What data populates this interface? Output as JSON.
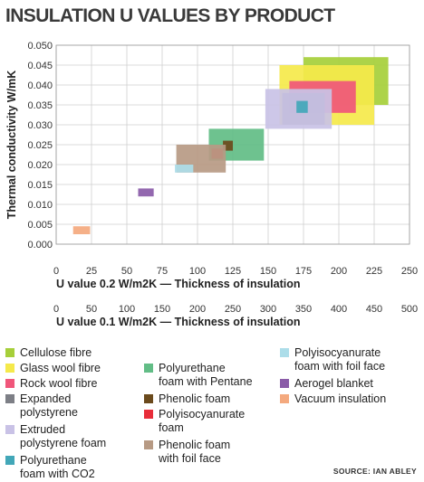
{
  "chart_data": {
    "type": "scatter",
    "title": "INSULATION U VALUES BY PRODUCT",
    "ylabel": "Thermal conductivity W/mK",
    "xlabel": "U value 0.2 W/m2K — Thickness of insulation",
    "xlabel2": "U value 0.1 W/m2K — Thickness of insulation",
    "xlim": [
      0,
      250
    ],
    "ylim": [
      0,
      0.05
    ],
    "x2lim": [
      0,
      500
    ],
    "xticks": [
      "0",
      "25",
      "50",
      "75",
      "100",
      "125",
      "150",
      "175",
      "200",
      "225",
      "250"
    ],
    "x2ticks": [
      "0",
      "50",
      "100",
      "150",
      "200",
      "250",
      "300",
      "350",
      "400",
      "450",
      "500"
    ],
    "yticks": [
      "0.000",
      "0.005",
      "0.010",
      "0.015",
      "0.020",
      "0.025",
      "0.030",
      "0.035",
      "0.040",
      "0.045",
      "0.050"
    ],
    "grid": true,
    "legend_position": "bottom",
    "series": [
      {
        "name": "Cellulose fibre",
        "color": "#a6cf3a",
        "x": [
          175,
          235
        ],
        "y": [
          0.035,
          0.047
        ]
      },
      {
        "name": "Glass wool fibre",
        "color": "#f5e94b",
        "x": [
          158,
          225
        ],
        "y": [
          0.03,
          0.045
        ]
      },
      {
        "name": "Rock wool fibre",
        "color": "#f0567a",
        "x": [
          165,
          212
        ],
        "y": [
          0.033,
          0.041
        ]
      },
      {
        "name": "Expanded polystyrene",
        "color": "#7d7f86",
        "x": [
          160,
          190
        ],
        "y": [
          0.03,
          0.038
        ]
      },
      {
        "name": "Extruded polystyrene foam",
        "color": "#c9c2e6",
        "x": [
          148,
          195
        ],
        "y": [
          0.029,
          0.039
        ]
      },
      {
        "name": "Polyurethane foam with CO2",
        "color": "#42a7b8",
        "x": [
          170,
          178
        ],
        "y": [
          0.033,
          0.036
        ]
      },
      {
        "name": "Polyurethane foam with Pentane",
        "color": "#62bd86",
        "x": [
          108,
          147
        ],
        "y": [
          0.021,
          0.029
        ]
      },
      {
        "name": "Phenolic foam",
        "color": "#6b4a1c",
        "x": [
          118,
          125
        ],
        "y": [
          0.0235,
          0.026
        ]
      },
      {
        "name": "Polyisocyanurate foam",
        "color": "#e82d3a",
        "x": [
          110,
          118
        ],
        "y": [
          0.0215,
          0.024
        ]
      },
      {
        "name": "Phenolic foam with foil face",
        "color": "#b79a84",
        "x": [
          85,
          120
        ],
        "y": [
          0.018,
          0.025
        ]
      },
      {
        "name": "Polyisocyanurate foam with foil face",
        "color": "#acdde9",
        "x": [
          84,
          97
        ],
        "y": [
          0.018,
          0.02
        ]
      },
      {
        "name": "Aerogel blanket",
        "color": "#8a5ba8",
        "x": [
          58,
          69
        ],
        "y": [
          0.012,
          0.014
        ]
      },
      {
        "name": "Vacuum insulation",
        "color": "#f4a97e",
        "x": [
          12,
          24
        ],
        "y": [
          0.0025,
          0.0045
        ]
      }
    ]
  },
  "legend": {
    "items": [
      {
        "label": "Cellulose fibre",
        "color": "#a6cf3a"
      },
      {
        "label": "Glass wool fibre",
        "color": "#f5e94b"
      },
      {
        "label": "Rock wool fibre",
        "color": "#f0567a"
      },
      {
        "label": "Expanded\npolystyrene",
        "color": "#7d7f86"
      },
      {
        "label": "Extruded\npolystyrene foam",
        "color": "#c9c2e6"
      },
      {
        "label": "Polyurethane\nfoam with CO2",
        "color": "#42a7b8"
      },
      {
        "label": "Polyurethane\nfoam with Pentane",
        "color": "#62bd86"
      },
      {
        "label": "Phenolic foam",
        "color": "#6b4a1c"
      },
      {
        "label": "Polyisocyanurate\nfoam",
        "color": "#e82d3a"
      },
      {
        "label": "Phenolic foam\nwith foil face",
        "color": "#b79a84"
      },
      {
        "label": "Polyisocyanurate\nfoam with foil face",
        "color": "#acdde9"
      },
      {
        "label": "Aerogel blanket",
        "color": "#8a5ba8"
      },
      {
        "label": "Vacuum insulation",
        "color": "#f4a97e"
      }
    ]
  },
  "source": "SOURCE: IAN ABLEY"
}
